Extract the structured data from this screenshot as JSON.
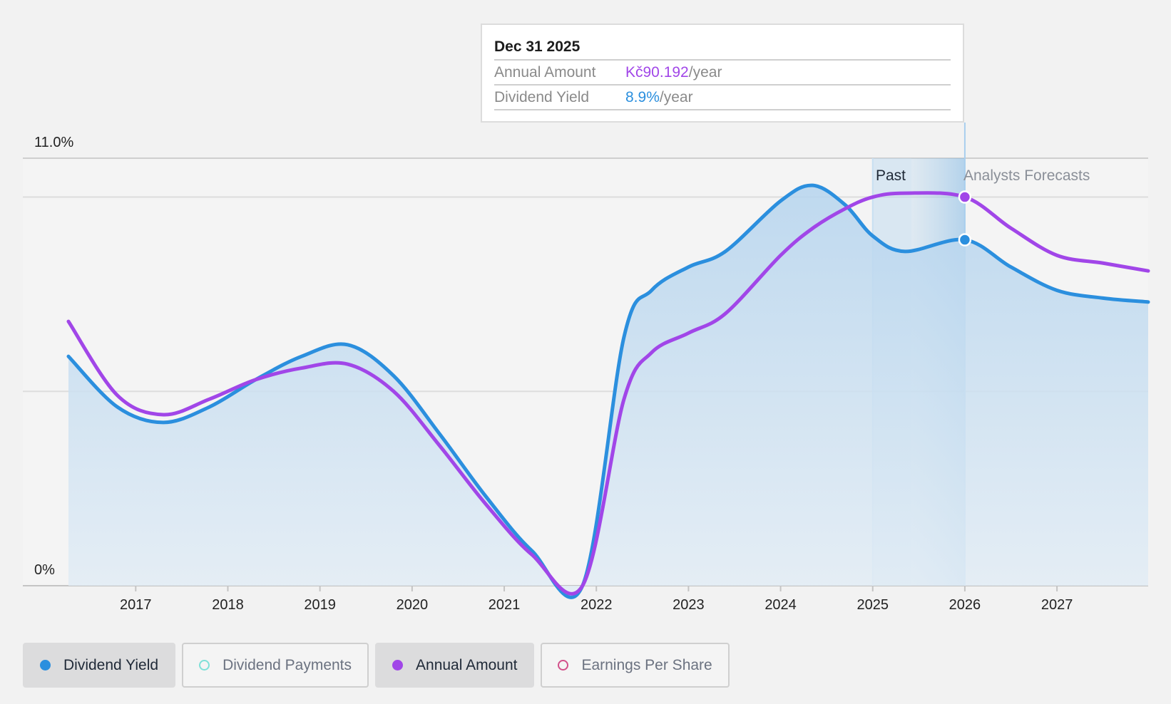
{
  "tooltip": {
    "date": "Dec 31 2025",
    "rows": [
      {
        "key": "Annual Amount",
        "value": "Kč90.192",
        "unit": "/year",
        "color": "#a146e8"
      },
      {
        "key": "Dividend Yield",
        "value": "8.9%",
        "unit": "/year",
        "color": "#2b8fde"
      }
    ]
  },
  "legend": [
    {
      "label": "Dividend Yield",
      "active": true,
      "color": "#2b8fde",
      "filled": true
    },
    {
      "label": "Dividend Payments",
      "active": false,
      "color": "#7fe0d8",
      "filled": false
    },
    {
      "label": "Annual Amount",
      "active": true,
      "color": "#a146e8",
      "filled": true
    },
    {
      "label": "Earnings Per Share",
      "active": false,
      "color": "#d2508a",
      "filled": false
    }
  ],
  "chart_data": {
    "type": "area",
    "y_ticks": [
      "11.0%",
      "0%"
    ],
    "ylim": [
      0,
      11.0
    ],
    "xlim": [
      2016.27,
      2027.99
    ],
    "x_ticks": [
      "2017",
      "2018",
      "2019",
      "2020",
      "2021",
      "2022",
      "2023",
      "2024",
      "2025",
      "2026",
      "2027"
    ],
    "regions": {
      "past_label": "Past",
      "forecast_label": "Analysts Forecasts",
      "past_end": 2025.0,
      "forecast_start": 2025.42
    },
    "marker_x": 2026.0,
    "colors": {
      "yield": "#2b8fde",
      "annual": "#a146e8"
    },
    "series": [
      {
        "name": "Dividend Yield",
        "key": "yield",
        "filled": true,
        "x": [
          2016.27,
          2016.8,
          2017.3,
          2017.8,
          2018.3,
          2018.8,
          2019.3,
          2019.8,
          2020.3,
          2020.8,
          2021.3,
          2021.85,
          2022.3,
          2022.6,
          2023.0,
          2023.4,
          2024.0,
          2024.35,
          2024.7,
          2025.0,
          2025.35,
          2026.0,
          2026.5,
          2027.0,
          2027.5,
          2027.99
        ],
        "y": [
          5.9,
          4.6,
          4.2,
          4.6,
          5.3,
          5.9,
          6.2,
          5.4,
          3.9,
          2.3,
          0.9,
          0.0,
          6.4,
          7.6,
          8.2,
          8.6,
          9.9,
          10.3,
          9.8,
          9.0,
          8.6,
          8.9,
          8.2,
          7.6,
          7.4,
          7.3
        ]
      },
      {
        "name": "Annual Amount",
        "key": "annual",
        "filled": false,
        "x": [
          2016.27,
          2016.8,
          2017.3,
          2017.8,
          2018.3,
          2018.8,
          2019.3,
          2019.8,
          2020.3,
          2020.8,
          2021.3,
          2021.85,
          2022.3,
          2022.6,
          2023.0,
          2023.4,
          2024.0,
          2024.35,
          2024.7,
          2025.0,
          2025.35,
          2026.0,
          2026.5,
          2027.0,
          2027.5,
          2027.99
        ],
        "y": [
          6.8,
          4.9,
          4.4,
          4.8,
          5.3,
          5.6,
          5.7,
          5.0,
          3.6,
          2.1,
          0.8,
          0.0,
          4.8,
          6.0,
          6.5,
          7.0,
          8.5,
          9.2,
          9.7,
          10.0,
          10.1,
          10.0,
          9.2,
          8.5,
          8.3,
          8.1
        ]
      }
    ]
  }
}
